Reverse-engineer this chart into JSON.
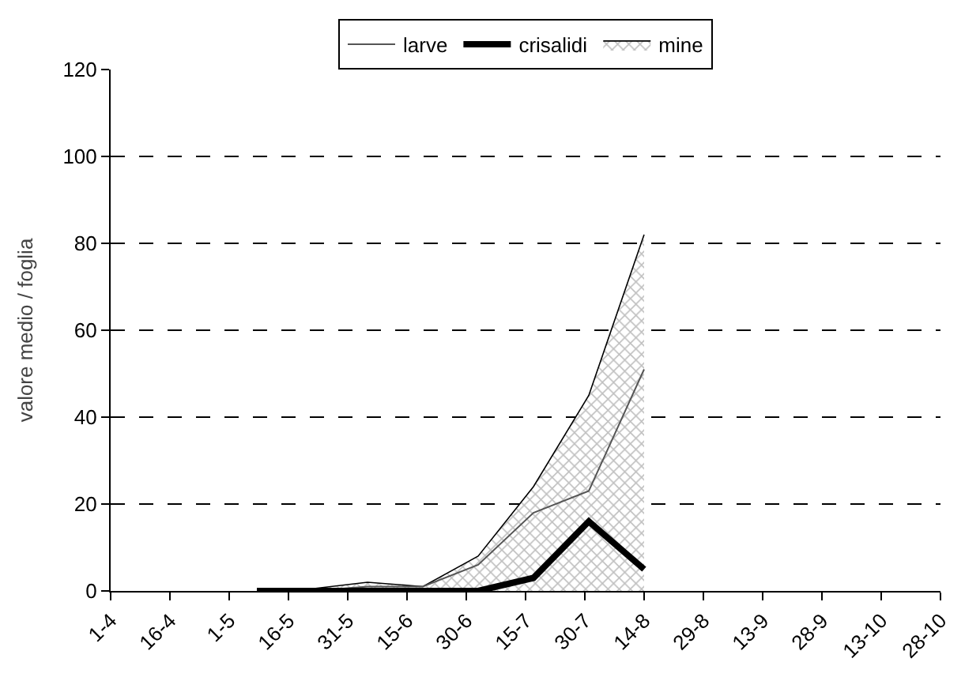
{
  "chart_data": {
    "type": "line",
    "ylabel": "valore medio / foglia",
    "x": [
      "--05-08",
      "--05-22",
      "--06-05",
      "--06-19",
      "--07-03",
      "--07-17",
      "--07-31",
      "--08-14"
    ],
    "series": [
      {
        "name": "larve",
        "color": "#555555",
        "line_style": "solid",
        "values": [
          0,
          0,
          1,
          1,
          6,
          18,
          23,
          51
        ]
      },
      {
        "name": "crisalidi",
        "color": "#000000",
        "line_style": "solid",
        "values": [
          0,
          0,
          0,
          0,
          0,
          3,
          16,
          5
        ]
      },
      {
        "name": "mine",
        "color": "#808080",
        "type": "area",
        "values": [
          0,
          0.5,
          2,
          1,
          8,
          24,
          45,
          82
        ]
      }
    ],
    "xlim": [
      "--04-01",
      "--10-28"
    ],
    "xticks": [
      {
        "value": "--04-01",
        "label": "1-4"
      },
      {
        "value": "--04-16",
        "label": "16-4"
      },
      {
        "value": "--05-01",
        "label": "1-5"
      },
      {
        "value": "--05-16",
        "label": "16-5"
      },
      {
        "value": "--05-31",
        "label": "31-5"
      },
      {
        "value": "--06-15",
        "label": "15-6"
      },
      {
        "value": "--06-30",
        "label": "30-6"
      },
      {
        "value": "--07-15",
        "label": "15-7"
      },
      {
        "value": "--07-30",
        "label": "30-7"
      },
      {
        "value": "--08-14",
        "label": "14-8"
      },
      {
        "value": "--08-29",
        "label": "29-8"
      },
      {
        "value": "--09-13",
        "label": "13-9"
      },
      {
        "value": "--09-28",
        "label": "28-9"
      },
      {
        "value": "--10-13",
        "label": "13-10"
      },
      {
        "value": "--10-28",
        "label": "28-10"
      }
    ],
    "ylim": [
      0,
      120
    ],
    "yticks": [
      0,
      20,
      40,
      60,
      80,
      100,
      120
    ],
    "grid": "y",
    "legend": "top",
    "marker": "none"
  }
}
